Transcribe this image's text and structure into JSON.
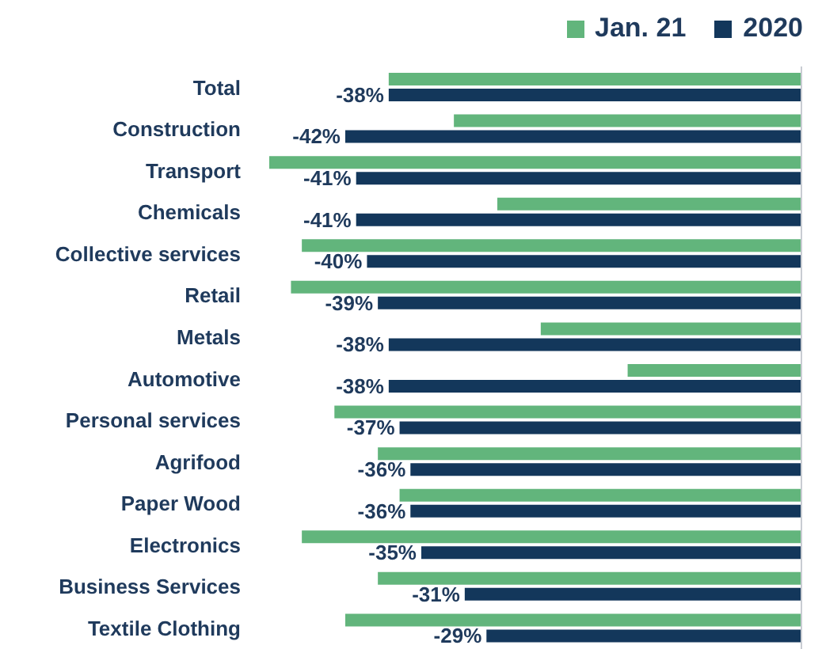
{
  "chart_data": {
    "type": "bar",
    "orientation": "horizontal",
    "categories": [
      "Total",
      "Construction",
      "Transport",
      "Chemicals",
      "Collective services",
      "Retail",
      "Metals",
      "Automotive",
      "Personal services",
      "Agrifood",
      "Paper Wood",
      "Electronics",
      "Business Services",
      "Textile Clothing"
    ],
    "series": [
      {
        "name": "Jan. 21",
        "color": "#62b57c",
        "values": [
          -38,
          -32,
          -49,
          -28,
          -46,
          -47,
          -24,
          -16,
          -43,
          -39,
          -37,
          -46,
          -39,
          -42
        ]
      },
      {
        "name": "2020",
        "color": "#13375b",
        "values": [
          -38,
          -42,
          -41,
          -41,
          -40,
          -39,
          -38,
          -38,
          -37,
          -36,
          -36,
          -35,
          -31,
          -29
        ],
        "value_labels": [
          "-38%",
          "-42%",
          "-41%",
          "-41%",
          "-40%",
          "-39%",
          "-38%",
          "-38%",
          "-37%",
          "-36%",
          "-36%",
          "-35%",
          "-31%",
          "-29%"
        ]
      }
    ],
    "tick_labels": "y",
    "grid": false,
    "legend": "top right"
  }
}
